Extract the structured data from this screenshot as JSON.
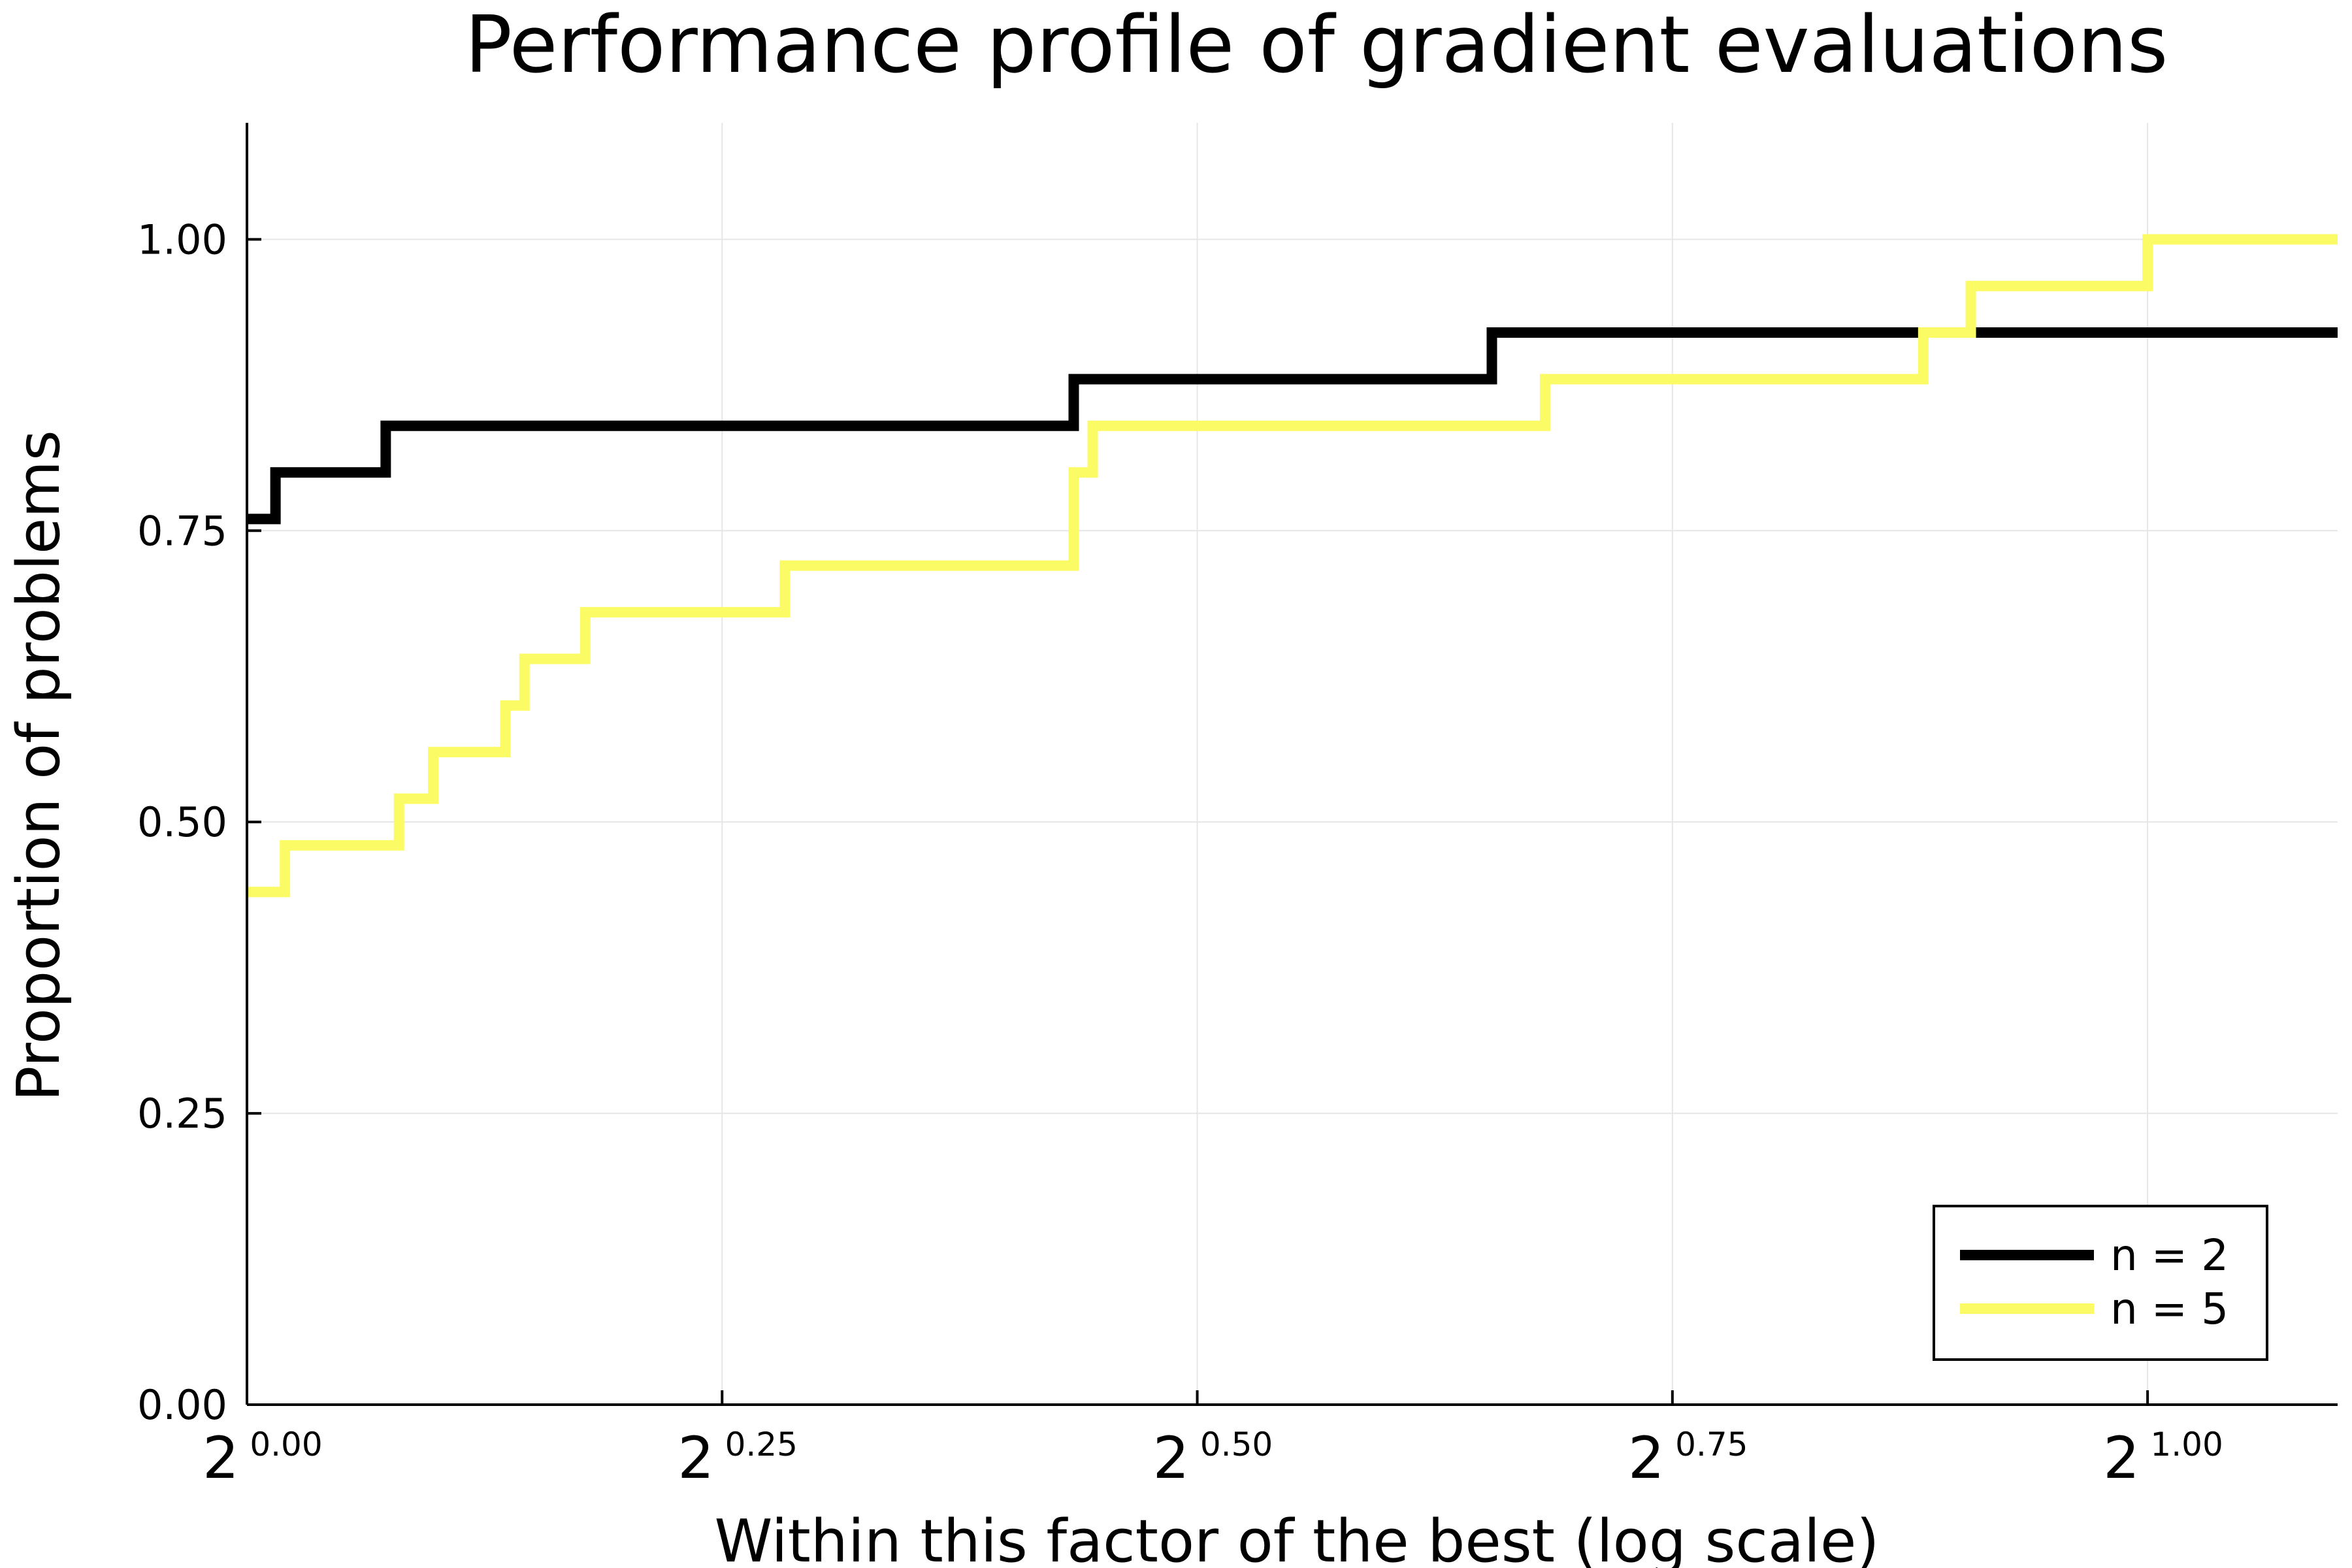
{
  "chart_data": {
    "type": "line",
    "step": true,
    "title": "Performance profile of gradient evaluations",
    "xlabel": "Within this factor of the best (log scale)",
    "ylabel": "Proportion of problems",
    "xscale": "log2",
    "xlim": [
      0.0,
      1.1
    ],
    "ylim": [
      0.0,
      1.1
    ],
    "xticks": [
      {
        "base": "2",
        "exp": "0.00",
        "value": 0.0
      },
      {
        "base": "2",
        "exp": "0.25",
        "value": 0.25
      },
      {
        "base": "2",
        "exp": "0.50",
        "value": 0.5
      },
      {
        "base": "2",
        "exp": "0.75",
        "value": 0.75
      },
      {
        "base": "2",
        "exp": "1.00",
        "value": 1.0
      }
    ],
    "yticks": [
      {
        "label": "0.00",
        "value": 0.0
      },
      {
        "label": "0.25",
        "value": 0.25
      },
      {
        "label": "0.50",
        "value": 0.5
      },
      {
        "label": "0.75",
        "value": 0.75
      },
      {
        "label": "1.00",
        "value": 1.0
      }
    ],
    "grid": true,
    "legend_position": "bottom-right",
    "series": [
      {
        "name": "n = 2",
        "color": "#000000",
        "points": [
          [
            0.0,
            0.76
          ],
          [
            0.015,
            0.8
          ],
          [
            0.073,
            0.84
          ],
          [
            0.435,
            0.88
          ],
          [
            0.655,
            0.92
          ],
          [
            1.1,
            0.92
          ]
        ]
      },
      {
        "name": "n = 5",
        "color": "#fbfb66",
        "points": [
          [
            0.0,
            0.44
          ],
          [
            0.02,
            0.48
          ],
          [
            0.08,
            0.52
          ],
          [
            0.098,
            0.56
          ],
          [
            0.136,
            0.6
          ],
          [
            0.146,
            0.64
          ],
          [
            0.178,
            0.68
          ],
          [
            0.283,
            0.72
          ],
          [
            0.435,
            0.8
          ],
          [
            0.445,
            0.84
          ],
          [
            0.683,
            0.88
          ],
          [
            0.882,
            0.92
          ],
          [
            0.907,
            0.96
          ],
          [
            1.0,
            1.0
          ],
          [
            1.1,
            1.0
          ]
        ]
      }
    ]
  }
}
